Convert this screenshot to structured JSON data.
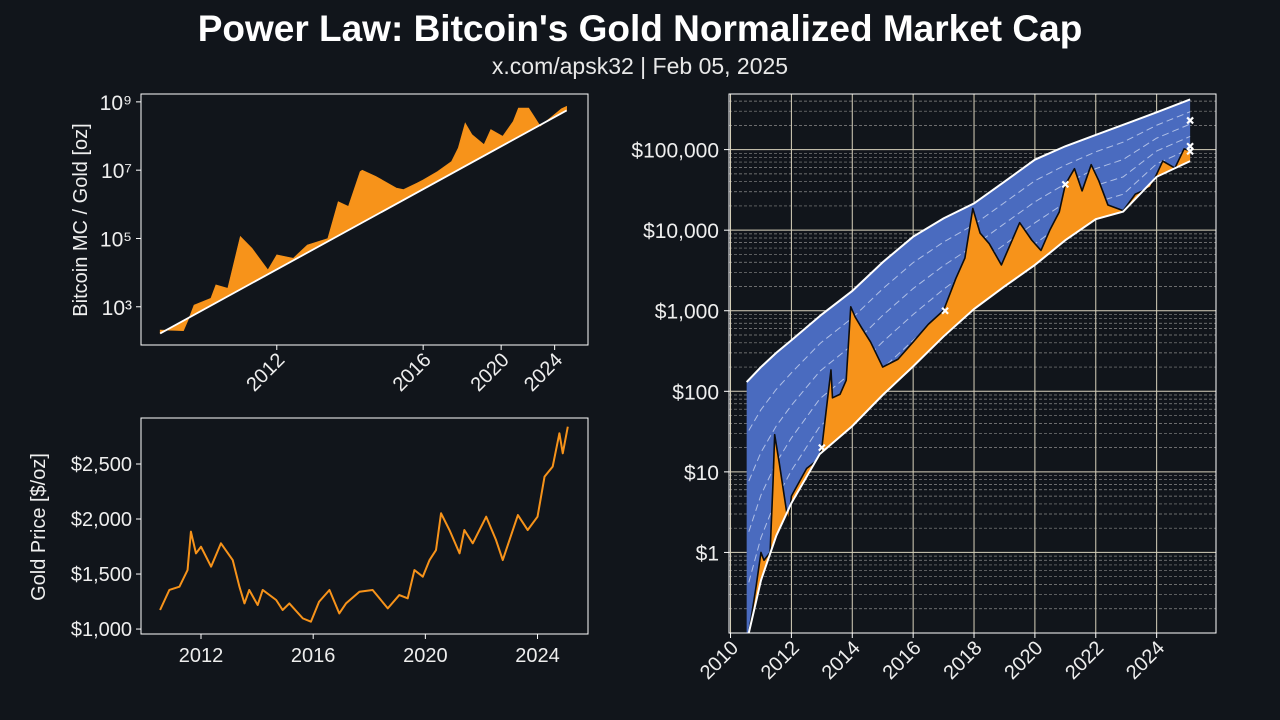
{
  "title": "Power Law: Bitcoin's Gold Normalized Market Cap",
  "subtitle": "x.com/apsk32 | Feb 05, 2025",
  "colors": {
    "background": "#11151b",
    "orange": "#f7931a",
    "blue": "#4a6bbf",
    "line": "#ffffff",
    "grid": "#d8d2bc",
    "minor_grid": "#8a8a8a",
    "price_line": "#0d0d0d"
  },
  "chart_data": [
    {
      "type": "area",
      "ylabel": "Bitcoin MC / Gold [oz]",
      "xscale": "log",
      "yscale": "log",
      "xlim": [
        2010.37,
        2027.2
      ],
      "ylim": [
        76,
        1700000000
      ],
      "xticks": [
        2012,
        2016,
        2020,
        2024
      ],
      "xtick_labels": [
        "2012",
        "2016",
        "2020",
        "2024"
      ],
      "yticks": [
        1000,
        100000,
        10000000,
        1000000000
      ],
      "ytick_labels": [
        "10³",
        "10⁵",
        "10⁷",
        "10⁹"
      ],
      "grid": false,
      "series": {
        "x": [
          2010.53,
          2010.75,
          2010.82,
          2010.86,
          2011.05,
          2011.11,
          2011.26,
          2011.43,
          2011.6,
          2011.85,
          2012.0,
          2012.3,
          2012.58,
          2013.03,
          2013.28,
          2013.54,
          2013.86,
          2013.92,
          2014.32,
          2014.99,
          2015.24,
          2015.76,
          2016.0,
          2016.6,
          2017.25,
          2017.58,
          2017.93,
          2018.29,
          2018.96,
          2019.36,
          2020.1,
          2020.8,
          2021.16,
          2021.9,
          2022.3,
          2022.8,
          2024.0,
          2024.6,
          2025.08
        ],
        "y": [
          209,
          200,
          575,
          1122,
          1778,
          4365,
          3467,
          114800,
          51300,
          12000,
          33100,
          26300,
          64600,
          100000,
          1200000,
          870000,
          9100000,
          10000000,
          6600000,
          3000000,
          2700000,
          4200000,
          5200000,
          9100000,
          18000000,
          45000000,
          240000000,
          110000000,
          56000000,
          155000000,
          98000000,
          270000000,
          660000000,
          660000000,
          380000000,
          195000000,
          430000000,
          630000000,
          740000000
        ]
      },
      "power_law": {
        "x": [
          2010.53,
          2025.08
        ],
        "y": [
          166,
          560000000
        ]
      }
    },
    {
      "type": "line",
      "ylabel": "Gold Price [$/oz]",
      "xlim": [
        2009.86,
        2025.8
      ],
      "ylim": [
        955,
        2918
      ],
      "xticks": [
        2012,
        2016,
        2020,
        2024
      ],
      "xtick_labels": [
        "2012",
        "2016",
        "2020",
        "2024"
      ],
      "yticks": [
        1000,
        1500,
        2000,
        2500
      ],
      "ytick_labels": [
        "$1,000",
        "$1,500",
        "$2,000",
        "$2,500"
      ],
      "grid": false,
      "series": {
        "x": [
          2010.54,
          2010.87,
          2011.23,
          2011.52,
          2011.64,
          2011.82,
          2012.0,
          2012.36,
          2012.71,
          2013.13,
          2013.37,
          2013.55,
          2013.72,
          2014.02,
          2014.2,
          2014.68,
          2014.91,
          2015.15,
          2015.63,
          2015.92,
          2016.21,
          2016.58,
          2016.93,
          2017.17,
          2017.65,
          2018.12,
          2018.66,
          2019.07,
          2019.37,
          2019.61,
          2019.91,
          2020.15,
          2020.38,
          2020.56,
          2020.86,
          2021.22,
          2021.39,
          2021.69,
          2022.17,
          2022.52,
          2022.76,
          2023.0,
          2023.3,
          2023.65,
          2024.0,
          2024.25,
          2024.54,
          2024.78,
          2024.9,
          2025.08
        ],
        "y": [
          1173,
          1355,
          1385,
          1536,
          1885,
          1688,
          1748,
          1567,
          1779,
          1627,
          1385,
          1233,
          1355,
          1218,
          1355,
          1264,
          1173,
          1233,
          1097,
          1067,
          1248,
          1355,
          1142,
          1233,
          1339,
          1355,
          1188,
          1309,
          1279,
          1536,
          1476,
          1627,
          1718,
          2052,
          1900,
          1688,
          1900,
          1779,
          2021,
          1809,
          1627,
          1809,
          2036,
          1900,
          2021,
          2385,
          2476,
          2779,
          2597,
          2839
        ]
      }
    },
    {
      "type": "area",
      "yscale": "log",
      "xlim": [
        2009.95,
        2025.95
      ],
      "ylim": [
        0.1,
        490000
      ],
      "xticks": [
        2010,
        2012,
        2014,
        2016,
        2018,
        2020,
        2022,
        2024
      ],
      "xtick_labels": [
        "2010",
        "2012",
        "2014",
        "2016",
        "2018",
        "2020",
        "2022",
        "2024"
      ],
      "yticks": [
        1,
        10,
        100,
        1000,
        10000,
        100000
      ],
      "ytick_labels": [
        "$1",
        "$10",
        "$100",
        "$1,000",
        "$10,000",
        "$100,000"
      ],
      "grid": true,
      "price": {
        "x": [
          2010.6,
          2010.85,
          2011.0,
          2011.1,
          2011.3,
          2011.4,
          2011.45,
          2011.6,
          2011.9,
          2012.0,
          2012.5,
          2012.9,
          2013.0,
          2013.3,
          2013.35,
          2013.6,
          2013.8,
          2013.95,
          2014.1,
          2014.3,
          2014.6,
          2015.0,
          2015.5,
          2016.0,
          2016.5,
          2017.0,
          2017.4,
          2017.7,
          2017.96,
          2018.2,
          2018.5,
          2018.9,
          2019.5,
          2019.9,
          2020.2,
          2020.5,
          2020.8,
          2021.0,
          2021.3,
          2021.55,
          2021.85,
          2022.1,
          2022.4,
          2022.9,
          2023.3,
          2023.8,
          2024.2,
          2024.6,
          2024.9,
          2025.1
        ],
        "y": [
          0.06,
          0.4,
          1,
          0.8,
          1,
          8,
          29,
          13,
          2.3,
          5,
          11,
          14.5,
          20,
          184,
          83,
          92,
          137,
          1120,
          830,
          620,
          410,
          200,
          250,
          410,
          680,
          1010,
          2500,
          4500,
          18600,
          9200,
          6800,
          3700,
          12400,
          7500,
          5600,
          10200,
          16800,
          37000,
          58000,
          30700,
          65000,
          41000,
          20500,
          17500,
          28000,
          34000,
          72000,
          59000,
          102000,
          97000
        ]
      },
      "band_upper": {
        "x": [
          2010.53,
          2011.0,
          2011.5,
          2012.0,
          2013.0,
          2014.0,
          2015.0,
          2016.0,
          2017.0,
          2018.0,
          2019.0,
          2020.0,
          2021.0,
          2022.0,
          2023.0,
          2024.0,
          2025.1
        ],
        "y": [
          130,
          200,
          300,
          430,
          900,
          1760,
          4000,
          8300,
          14000,
          21500,
          40000,
          75000,
          110000,
          152000,
          210000,
          290000,
          420000
        ]
      },
      "band_lower": {
        "x": [
          2010.6,
          2011.0,
          2011.5,
          2012.0,
          2012.93,
          2014.0,
          2015.0,
          2016.0,
          2017.0,
          2018.0,
          2019.0,
          2020.0,
          2021.0,
          2022.0,
          2022.9,
          2024.0,
          2025.1
        ],
        "y": [
          0.1,
          0.45,
          1.6,
          4.1,
          16.6,
          37,
          90,
          204,
          480,
          1050,
          2000,
          3700,
          7500,
          13700,
          17000,
          46000,
          72000
        ]
      },
      "band_quantile_lines": [
        0.2,
        0.4,
        0.6,
        0.8
      ],
      "markers": {
        "x": [
          2013.0,
          2017.05,
          2021.0,
          2025.1,
          2025.1,
          2025.1
        ],
        "y": [
          20,
          1000,
          37000,
          230000,
          110000,
          95000
        ]
      }
    }
  ]
}
